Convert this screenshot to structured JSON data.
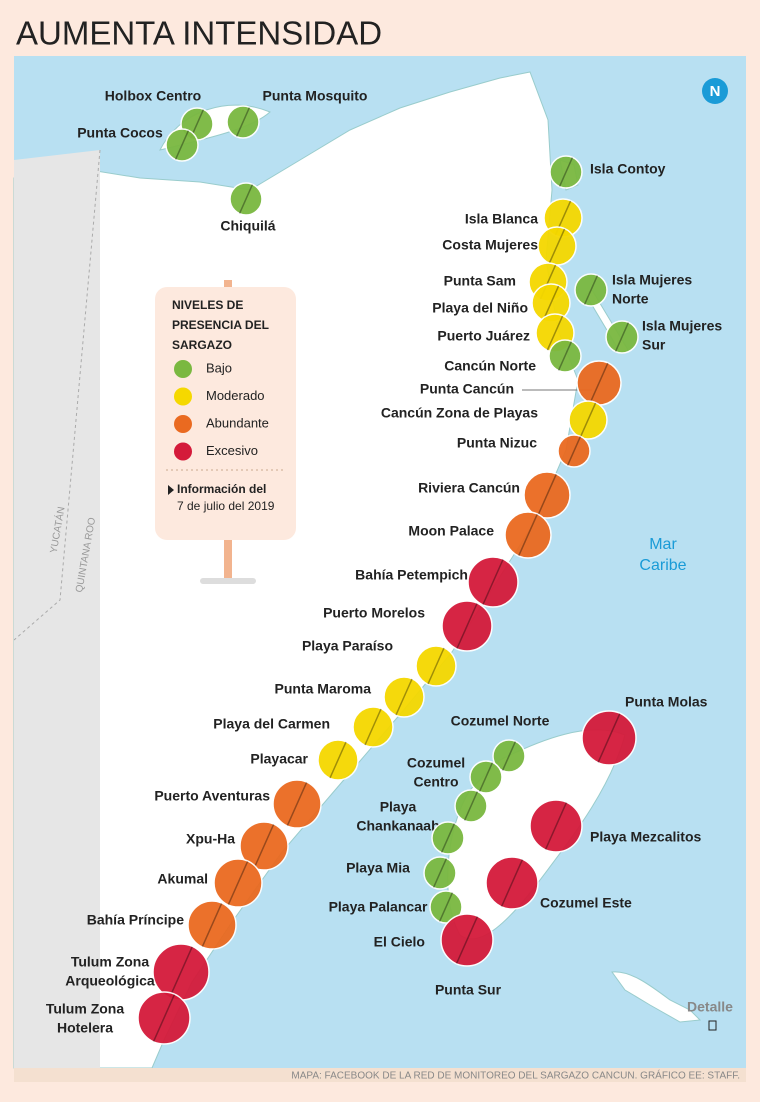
{
  "title": "AUMENTA INTENSIDAD",
  "legend": {
    "title": [
      "NIVELES DE",
      "PRESENCIA DEL",
      "SARGAZO"
    ],
    "levels": [
      {
        "label": "Bajo",
        "color": "#7ab840"
      },
      {
        "label": "Moderado",
        "color": "#f5d800"
      },
      {
        "label": "Abundante",
        "color": "#ea6a20"
      },
      {
        "label": "Excesivo",
        "color": "#d41a3a"
      }
    ],
    "note_heading": "Información del",
    "note_date": "7 de julio del 2019"
  },
  "locations": [
    {
      "label": [
        "Holbox Centro"
      ],
      "color": "#7ab840"
    },
    {
      "label": [
        "Punta Cocos"
      ],
      "color": "#7ab840"
    },
    {
      "label": [
        "Punta Mosquito"
      ],
      "color": "#7ab840"
    },
    {
      "label": [
        "Chiquilá"
      ],
      "color": "#7ab840"
    },
    {
      "label": [
        "Isla Contoy"
      ],
      "color": "#7ab840"
    },
    {
      "label": [
        "Isla Blanca"
      ],
      "color": "#f5d800"
    },
    {
      "label": [
        "Costa Mujeres"
      ],
      "color": "#f5d800"
    },
    {
      "label": [
        "Punta Sam"
      ],
      "color": "#f5d800"
    },
    {
      "label": [
        "Isla Mujeres",
        "Norte"
      ],
      "color": "#7ab840"
    },
    {
      "label": [
        "Playa del Niño"
      ],
      "color": "#f5d800"
    },
    {
      "label": [
        "Puerto Juárez"
      ],
      "color": "#f5d800"
    },
    {
      "label": [
        "Isla Mujeres",
        "Sur"
      ],
      "color": "#7ab840"
    },
    {
      "label": [
        "Cancún Norte"
      ],
      "color": "#7ab840"
    },
    {
      "label": [
        "Punta Cancún"
      ],
      "color": "#ea6a20"
    },
    {
      "label": [
        "Cancún Zona de Playas"
      ],
      "color": "#f5d800"
    },
    {
      "label": [
        "Punta Nizuc"
      ],
      "color": "#ea6a20"
    },
    {
      "label": [
        "Riviera Cancún"
      ],
      "color": "#ea6a20"
    },
    {
      "label": [
        "Moon Palace"
      ],
      "color": "#ea6a20"
    },
    {
      "label": [
        "Bahía Petempich"
      ],
      "color": "#d41a3a"
    },
    {
      "label": [
        "Puerto Morelos"
      ],
      "color": "#d41a3a"
    },
    {
      "label": [
        "Playa Paraíso"
      ],
      "color": "#f5d800"
    },
    {
      "label": [
        "Punta Maroma"
      ],
      "color": "#f5d800"
    },
    {
      "label": [
        "Playa del Carmen"
      ],
      "color": "#f5d800"
    },
    {
      "label": [
        "Playacar"
      ],
      "color": "#f5d800"
    },
    {
      "label": [
        "Puerto Aventuras"
      ],
      "color": "#ea6a20"
    },
    {
      "label": [
        "Xpu-Ha"
      ],
      "color": "#ea6a20"
    },
    {
      "label": [
        "Akumal"
      ],
      "color": "#ea6a20"
    },
    {
      "label": [
        "Bahía Príncipe"
      ],
      "color": "#ea6a20"
    },
    {
      "label": [
        "Tulum Zona",
        "Arqueológica"
      ],
      "color": "#d41a3a"
    },
    {
      "label": [
        "Tulum Zona",
        "Hotelera"
      ],
      "color": "#d41a3a"
    },
    {
      "label": [
        "Cozumel Norte"
      ],
      "color": "#7ab840"
    },
    {
      "label": [
        "Cozumel",
        "Centro"
      ],
      "color": "#7ab840"
    },
    {
      "label": [
        "Playa",
        "Chankanaab"
      ],
      "color": "#7ab840"
    },
    {
      "label": null,
      "color": "#7ab840"
    },
    {
      "label": [
        "Playa Mia"
      ],
      "color": "#7ab840"
    },
    {
      "label": [
        "Playa Palancar"
      ],
      "color": "#7ab840"
    },
    {
      "label": [
        "Punta Molas"
      ],
      "color": "#d41a3a"
    },
    {
      "label": [
        "Playa Mezcalitos"
      ],
      "color": "#d41a3a"
    },
    {
      "label": [
        "Cozumel Este"
      ],
      "color": "#d41a3a"
    },
    {
      "label": [
        "El Cielo"
      ],
      "color": "#d41a3a"
    }
  ],
  "map_labels": {
    "punta_sur": "Punta Sur",
    "sea": [
      "Mar",
      "Caribe"
    ],
    "state_west": "YUCATÁN",
    "state_east": "QUINTANA ROO",
    "north": "N",
    "detail": "Detalle"
  },
  "source": "MAPA: FACEBOOK DE LA RED DE MONITOREO DEL SARGAZO CANCUN. GRÁFICO EE: STAFF."
}
